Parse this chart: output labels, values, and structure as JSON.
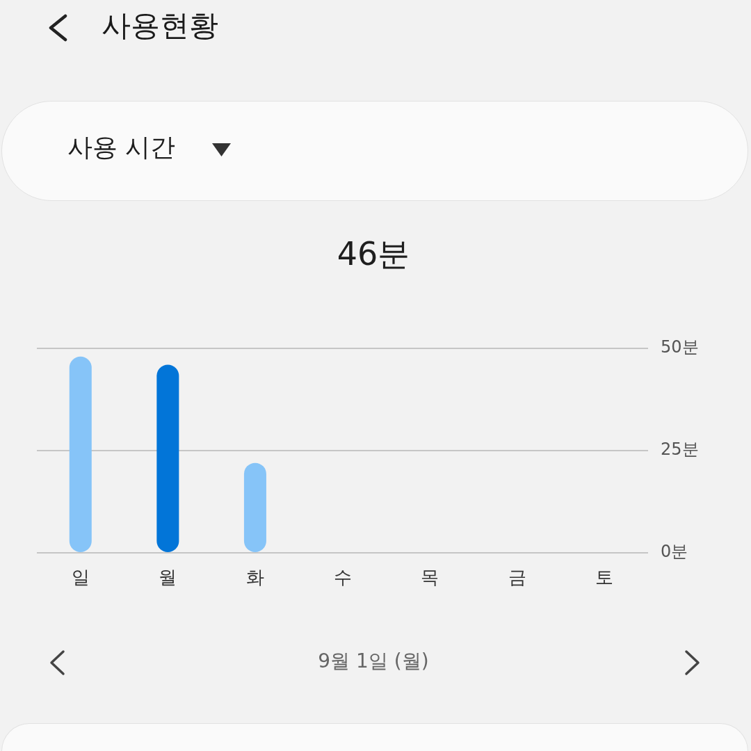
{
  "chart_data": {
    "type": "bar",
    "title": "사용현황",
    "annotations": [
      "사용 시간",
      "46분",
      "9월 1일 (월)"
    ],
    "categories": [
      "일",
      "월",
      "화",
      "수",
      "목",
      "금",
      "토"
    ],
    "values": [
      48,
      46,
      22,
      null,
      null,
      null,
      null
    ],
    "colors": [
      "#86c4f8",
      "#0275d8",
      "#86c4f8",
      "#86c4f8",
      "#86c4f8",
      "#86c4f8",
      "#86c4f8"
    ],
    "ylim": [
      0,
      50
    ],
    "yticks": [
      {
        "value": 0,
        "label": "0분"
      },
      {
        "value": 25,
        "label": "25분"
      },
      {
        "value": 50,
        "label": "50분"
      }
    ],
    "grid": "y"
  }
}
